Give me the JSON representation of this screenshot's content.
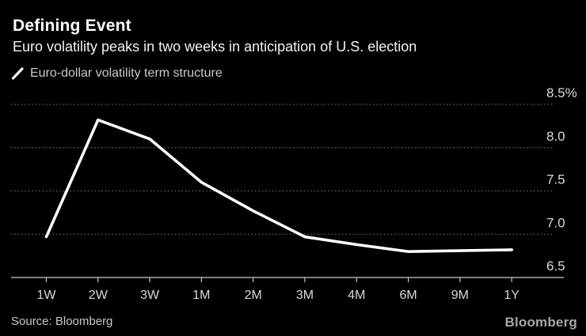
{
  "header": {
    "title": "Defining Event",
    "subtitle": "Euro volatility peaks in two weeks in anticipation of U.S. election"
  },
  "legend": {
    "label": "Euro-dollar volatility term structure",
    "marker": "white-slash-line"
  },
  "chart_data": {
    "type": "line",
    "title": "Defining Event",
    "subtitle": "Euro volatility peaks in two weeks in anticipation of U.S. election",
    "categories": [
      "1W",
      "2W",
      "3W",
      "1M",
      "2M",
      "3M",
      "4M",
      "6M",
      "9M",
      "1Y"
    ],
    "series": [
      {
        "name": "Euro-dollar volatility term structure",
        "values": [
          6.97,
          8.32,
          8.1,
          7.6,
          7.27,
          6.97,
          6.88,
          6.8,
          6.81,
          6.82
        ]
      }
    ],
    "xlabel": "",
    "ylabel": "",
    "unit": "%",
    "ylim": [
      6.5,
      8.5
    ],
    "yticks": [
      6.5,
      7.0,
      7.5,
      8.0,
      8.5
    ],
    "ytick_labels": [
      "6.5",
      "7.0",
      "7.5",
      "8.0",
      "8.5%"
    ],
    "grid": "horizontal-dotted",
    "legend_position": "top-left",
    "colors": {
      "background": "#000000",
      "line": "#ffffff",
      "grid": "#757575",
      "axis": "#c9c9c9",
      "tick_label": "#d9d9d9"
    }
  },
  "footer": {
    "source": "Source: Bloomberg",
    "logo": "Bloomberg"
  }
}
